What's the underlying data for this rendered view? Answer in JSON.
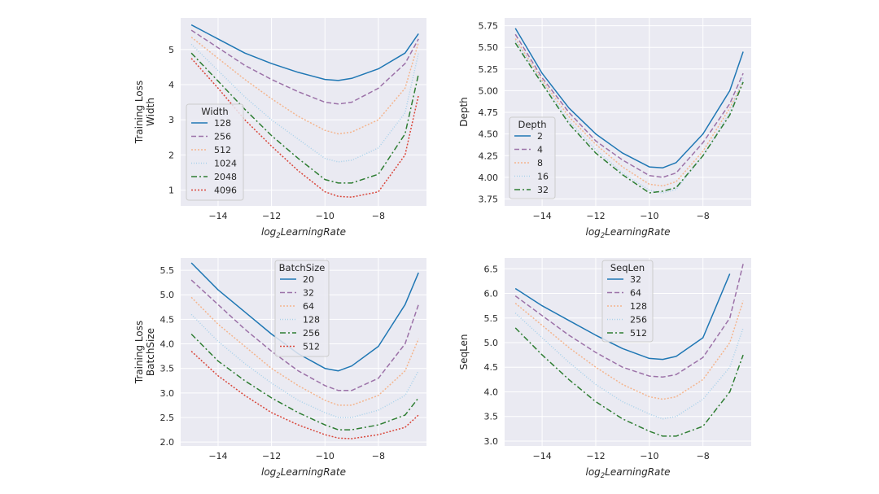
{
  "colors": {
    "series": [
      "#1f77b4",
      "#9c72a8",
      "#f4b58e",
      "#a9d1ea",
      "#2e7d32",
      "#d9463a"
    ],
    "background": "#eaeaf2",
    "grid": "#ffffff"
  },
  "chart_data": [
    {
      "type": "line",
      "xlabel": "log2LearningRate",
      "ylabel_lines": [
        "Training Loss",
        "Width"
      ],
      "xlim": [
        -15.4,
        -6.2
      ],
      "ylim": [
        0.55,
        5.9
      ],
      "xticks": [
        -14,
        -12,
        -10,
        -8
      ],
      "xtick_labels": [
        "−14",
        "−12",
        "−10",
        "−8"
      ],
      "yticks": [
        1,
        2,
        3,
        4,
        5
      ],
      "ytick_labels": [
        "1",
        "2",
        "3",
        "4",
        "5"
      ],
      "legend": {
        "title": "Width",
        "position": "center-left"
      },
      "series": [
        {
          "name": "128",
          "x": [
            -15,
            -14,
            -13,
            -12,
            -11,
            -10,
            -9.5,
            -9,
            -8,
            -7,
            -6.5
          ],
          "values": [
            5.7,
            5.3,
            4.9,
            4.6,
            4.35,
            4.15,
            4.12,
            4.18,
            4.45,
            4.9,
            5.45
          ]
        },
        {
          "name": "256",
          "x": [
            -15,
            -14,
            -13,
            -12,
            -11,
            -10,
            -9.5,
            -9,
            -8,
            -7,
            -6.5
          ],
          "values": [
            5.55,
            5.05,
            4.55,
            4.15,
            3.8,
            3.5,
            3.45,
            3.5,
            3.9,
            4.6,
            5.3
          ]
        },
        {
          "name": "512",
          "x": [
            -15,
            -14,
            -13,
            -12,
            -11,
            -10,
            -9.5,
            -9,
            -8,
            -7,
            -6.5
          ],
          "values": [
            5.35,
            4.75,
            4.15,
            3.6,
            3.1,
            2.7,
            2.6,
            2.65,
            3.0,
            3.9,
            5.2
          ]
        },
        {
          "name": "1024",
          "x": [
            -15,
            -14,
            -13,
            -12,
            -11,
            -10,
            -9.5,
            -9,
            -8,
            -7,
            -6.5
          ],
          "values": [
            5.15,
            4.4,
            3.65,
            3.0,
            2.45,
            1.9,
            1.8,
            1.85,
            2.2,
            3.2,
            4.9
          ]
        },
        {
          "name": "2048",
          "x": [
            -15,
            -14,
            -13,
            -12,
            -11,
            -10,
            -9.5,
            -9,
            -8,
            -7,
            -6.5
          ],
          "values": [
            4.9,
            4.1,
            3.3,
            2.55,
            1.9,
            1.3,
            1.2,
            1.2,
            1.45,
            2.6,
            4.3
          ]
        },
        {
          "name": "4096",
          "x": [
            -15,
            -14,
            -13,
            -12,
            -11,
            -10,
            -9.5,
            -9,
            -8,
            -7,
            -6.5
          ],
          "values": [
            4.75,
            3.9,
            3.0,
            2.25,
            1.55,
            0.95,
            0.82,
            0.8,
            0.95,
            2.0,
            3.7
          ]
        }
      ]
    },
    {
      "type": "line",
      "xlabel": "log2LearningRate",
      "ylabel_lines": [
        "Depth"
      ],
      "xlim": [
        -15.4,
        -6.2
      ],
      "ylim": [
        3.67,
        5.84
      ],
      "xticks": [
        -14,
        -12,
        -10,
        -8
      ],
      "xtick_labels": [
        "−14",
        "−12",
        "−10",
        "−8"
      ],
      "yticks": [
        3.75,
        4.0,
        4.25,
        4.5,
        4.75,
        5.0,
        5.25,
        5.5,
        5.75
      ],
      "ytick_labels": [
        "3.75",
        "4.00",
        "4.25",
        "4.50",
        "4.75",
        "5.00",
        "5.25",
        "5.50",
        "5.75"
      ],
      "legend": {
        "title": "Depth",
        "position": "lower-left"
      },
      "series": [
        {
          "name": "2",
          "x": [
            -15,
            -14,
            -13,
            -12,
            -11,
            -10,
            -9.5,
            -9,
            -8,
            -7,
            -6.5
          ],
          "values": [
            5.72,
            5.2,
            4.8,
            4.5,
            4.28,
            4.12,
            4.11,
            4.17,
            4.5,
            5.0,
            5.45
          ]
        },
        {
          "name": "4",
          "x": [
            -15,
            -14,
            -13,
            -12,
            -11,
            -10,
            -9.5,
            -9,
            -8,
            -7,
            -6.5
          ],
          "values": [
            5.65,
            5.15,
            4.75,
            4.42,
            4.2,
            4.02,
            4.0,
            4.05,
            4.4,
            4.85,
            5.2
          ]
        },
        {
          "name": "8",
          "x": [
            -15,
            -14,
            -13,
            -12,
            -11,
            -10,
            -9.5,
            -9,
            -8,
            -7,
            -6.5
          ],
          "values": [
            5.6,
            5.12,
            4.7,
            4.38,
            4.12,
            3.92,
            3.9,
            3.95,
            4.3,
            4.8,
            5.1
          ]
        },
        {
          "name": "16",
          "x": [
            -15,
            -14,
            -13,
            -12,
            -11,
            -10,
            -9.5,
            -9,
            -8,
            -7,
            -6.5
          ],
          "values": [
            5.58,
            5.1,
            4.65,
            4.32,
            4.05,
            3.85,
            3.82,
            3.86,
            4.25,
            4.75,
            5.15
          ]
        },
        {
          "name": "32",
          "x": [
            -15,
            -14,
            -13,
            -12,
            -11,
            -10,
            -9.5,
            -9,
            -8,
            -7,
            -6.5
          ],
          "values": [
            5.55,
            5.08,
            4.62,
            4.28,
            4.03,
            3.82,
            3.84,
            3.88,
            4.25,
            4.72,
            5.1
          ]
        }
      ]
    },
    {
      "type": "line",
      "xlabel": "log2LearningRate",
      "ylabel_lines": [
        "Training Loss",
        "BatchSize"
      ],
      "xlim": [
        -15.4,
        -6.2
      ],
      "ylim": [
        1.92,
        5.75
      ],
      "xticks": [
        -14,
        -12,
        -10,
        -8
      ],
      "xtick_labels": [
        "−14",
        "−12",
        "−10",
        "−8"
      ],
      "yticks": [
        2.0,
        2.5,
        3.0,
        3.5,
        4.0,
        4.5,
        5.0,
        5.5
      ],
      "ytick_labels": [
        "2.0",
        "2.5",
        "3.0",
        "3.5",
        "4.0",
        "4.5",
        "5.0",
        "5.5"
      ],
      "legend": {
        "title": "BatchSize",
        "position": "upper-center"
      },
      "series": [
        {
          "name": "20",
          "x": [
            -15,
            -14,
            -13,
            -12,
            -11,
            -10,
            -9.5,
            -9,
            -8,
            -7,
            -6.5
          ],
          "values": [
            5.65,
            5.1,
            4.65,
            4.2,
            3.8,
            3.5,
            3.45,
            3.55,
            3.95,
            4.8,
            5.45
          ]
        },
        {
          "name": "32",
          "x": [
            -15,
            -14,
            -13,
            -12,
            -11,
            -10,
            -9.5,
            -9,
            -8,
            -7,
            -6.5
          ],
          "values": [
            5.3,
            4.8,
            4.3,
            3.85,
            3.45,
            3.15,
            3.05,
            3.05,
            3.3,
            4.0,
            4.8
          ]
        },
        {
          "name": "64",
          "x": [
            -15,
            -14,
            -13,
            -12,
            -11,
            -10,
            -9.5,
            -9,
            -8,
            -7,
            -6.5
          ],
          "values": [
            4.95,
            4.4,
            3.95,
            3.5,
            3.15,
            2.85,
            2.75,
            2.75,
            2.95,
            3.45,
            4.1
          ]
        },
        {
          "name": "128",
          "x": [
            -15,
            -14,
            -13,
            -12,
            -11,
            -10,
            -9.5,
            -9,
            -8,
            -7,
            -6.5
          ],
          "values": [
            4.6,
            4.05,
            3.6,
            3.2,
            2.85,
            2.6,
            2.5,
            2.5,
            2.65,
            2.95,
            3.45
          ]
        },
        {
          "name": "256",
          "x": [
            -15,
            -14,
            -13,
            -12,
            -11,
            -10,
            -9.5,
            -9,
            -8,
            -7,
            -6.5
          ],
          "values": [
            4.2,
            3.65,
            3.25,
            2.9,
            2.6,
            2.35,
            2.25,
            2.25,
            2.35,
            2.55,
            2.9
          ]
        },
        {
          "name": "512",
          "x": [
            -15,
            -14,
            -13,
            -12,
            -11,
            -10,
            -9.5,
            -9,
            -8,
            -7,
            -6.5
          ],
          "values": [
            3.85,
            3.35,
            2.95,
            2.6,
            2.35,
            2.15,
            2.08,
            2.07,
            2.15,
            2.3,
            2.55
          ]
        }
      ]
    },
    {
      "type": "line",
      "xlabel": "log2LearningRate",
      "ylabel_lines": [
        "SeqLen"
      ],
      "xlim": [
        -15.4,
        -6.2
      ],
      "ylim": [
        2.9,
        6.72
      ],
      "xticks": [
        -14,
        -12,
        -10,
        -8
      ],
      "xtick_labels": [
        "−14",
        "−12",
        "−10",
        "−8"
      ],
      "yticks": [
        3.0,
        3.5,
        4.0,
        4.5,
        5.0,
        5.5,
        6.0,
        6.5
      ],
      "ytick_labels": [
        "3.0",
        "3.5",
        "4.0",
        "4.5",
        "5.0",
        "5.5",
        "6.0",
        "6.5"
      ],
      "legend": {
        "title": "SeqLen",
        "position": "upper-center"
      },
      "series": [
        {
          "name": "32",
          "x": [
            -15,
            -14,
            -13,
            -12,
            -11,
            -10,
            -9.5,
            -9,
            -8,
            -7
          ],
          "values": [
            6.1,
            5.75,
            5.45,
            5.15,
            4.88,
            4.68,
            4.66,
            4.72,
            5.1,
            6.4
          ]
        },
        {
          "name": "64",
          "x": [
            -15,
            -14,
            -13,
            -12,
            -11,
            -10,
            -9.5,
            -9,
            -8,
            -7,
            -6.5
          ],
          "values": [
            5.95,
            5.55,
            5.15,
            4.8,
            4.5,
            4.32,
            4.3,
            4.35,
            4.7,
            5.5,
            6.6
          ]
        },
        {
          "name": "128",
          "x": [
            -15,
            -14,
            -13,
            -12,
            -11,
            -10,
            -9.5,
            -9,
            -8,
            -7,
            -6.5
          ],
          "values": [
            5.8,
            5.35,
            4.9,
            4.5,
            4.15,
            3.9,
            3.85,
            3.9,
            4.25,
            5.0,
            5.85
          ]
        },
        {
          "name": "256",
          "x": [
            -15,
            -14,
            -13,
            -12,
            -11,
            -10,
            -9.5,
            -9,
            -8,
            -7,
            -6.5
          ],
          "values": [
            5.6,
            5.1,
            4.6,
            4.15,
            3.8,
            3.55,
            3.45,
            3.5,
            3.85,
            4.5,
            5.3
          ]
        },
        {
          "name": "512",
          "x": [
            -15,
            -14,
            -13,
            -12,
            -11,
            -10,
            -9.5,
            -9,
            -8,
            -7,
            -6.5
          ],
          "values": [
            5.3,
            4.75,
            4.25,
            3.8,
            3.45,
            3.2,
            3.1,
            3.1,
            3.3,
            4.0,
            4.75
          ]
        }
      ]
    }
  ]
}
